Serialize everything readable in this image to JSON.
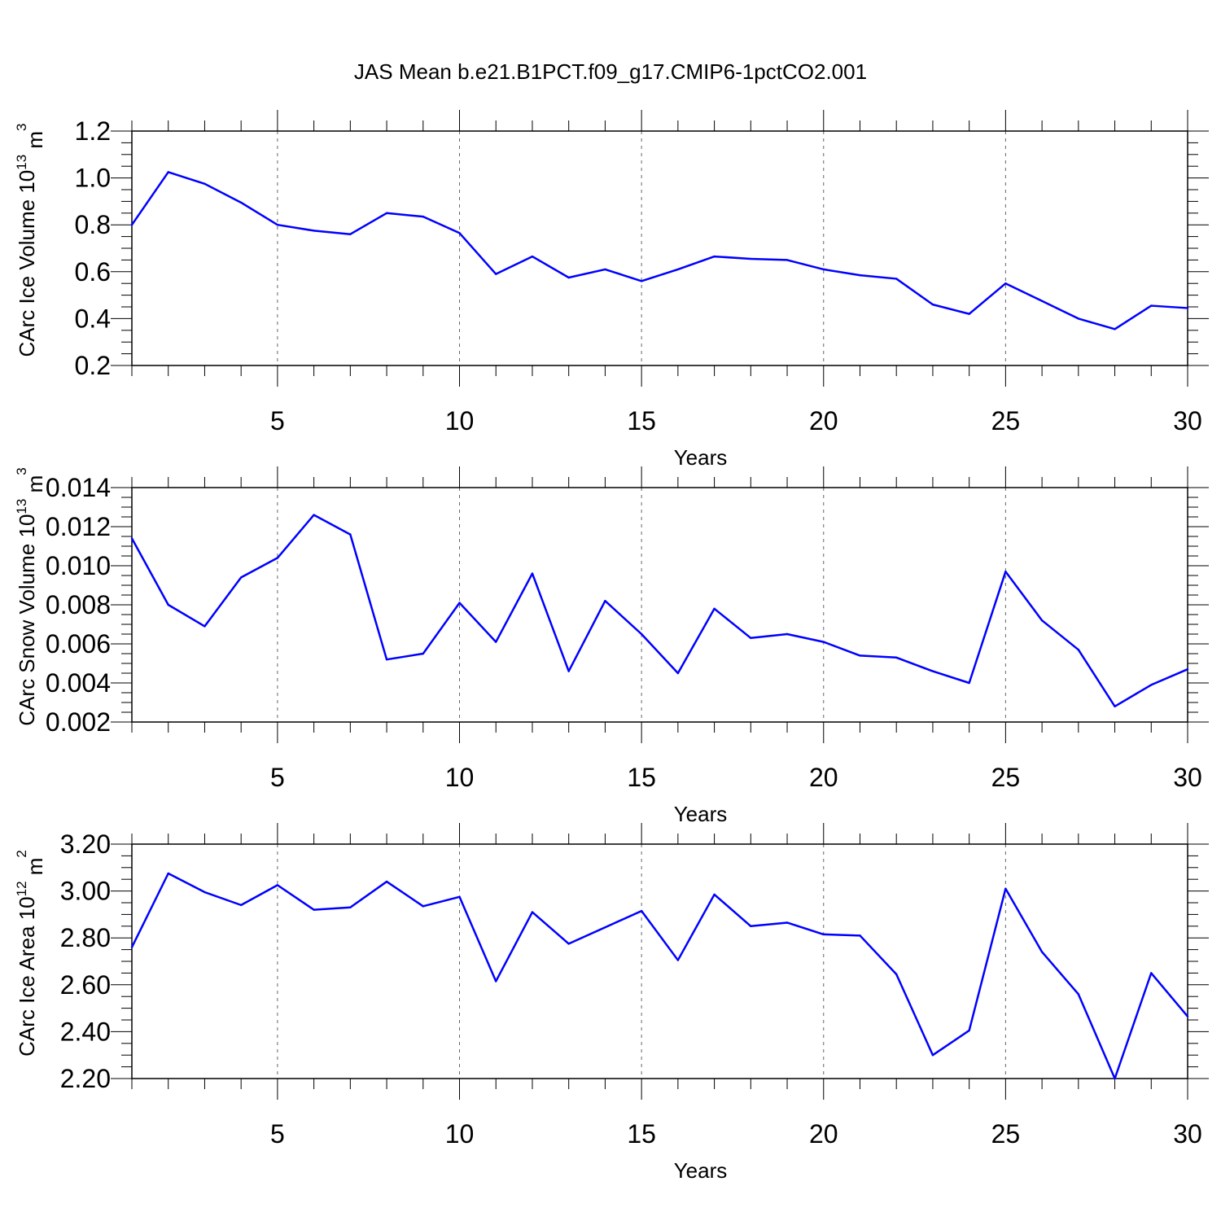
{
  "title": "JAS Mean b.e21.B1PCT.f09_g17.CMIP6-1pctCO2.001",
  "colors": {
    "line": "#0000ff",
    "axis": "#000000",
    "grid": "#666666"
  },
  "chart_data": [
    {
      "type": "line",
      "title": "JAS Mean b.e21.B1PCT.f09_g17.CMIP6-1pctCO2.001",
      "xlabel": "Years",
      "ylabel": {
        "base": "CArc Ice Volume 10",
        "exp1": "13",
        "mid": " m",
        "exp2": "3"
      },
      "xlim": [
        1,
        30
      ],
      "ylim": [
        0.2,
        1.2
      ],
      "x_ticks": [
        5,
        10,
        15,
        20,
        25,
        30
      ],
      "x_tick_labels": [
        "5",
        "10",
        "15",
        "20",
        "25",
        "30"
      ],
      "y_ticks": [
        0.2,
        0.4,
        0.6,
        0.8,
        1.0,
        1.2
      ],
      "y_tick_labels": [
        "0.2",
        "0.4",
        "0.6",
        "0.8",
        "1.0",
        "1.2"
      ],
      "y_minor_step": 0.05,
      "grid": "x-major-dashed",
      "series": [
        {
          "name": "CArc Ice Volume",
          "x": [
            1,
            2,
            3,
            4,
            5,
            6,
            7,
            8,
            9,
            10,
            11,
            12,
            13,
            14,
            15,
            16,
            17,
            18,
            19,
            20,
            21,
            22,
            23,
            24,
            25,
            26,
            27,
            28,
            29,
            30
          ],
          "values": [
            0.8,
            1.025,
            0.975,
            0.895,
            0.8,
            0.775,
            0.76,
            0.85,
            0.835,
            0.765,
            0.59,
            0.665,
            0.575,
            0.61,
            0.56,
            0.61,
            0.665,
            0.655,
            0.65,
            0.61,
            0.585,
            0.57,
            0.46,
            0.42,
            0.55,
            0.475,
            0.4,
            0.355,
            0.455,
            0.445
          ]
        }
      ]
    },
    {
      "type": "line",
      "xlabel": "Years",
      "ylabel": {
        "base": "CArc Snow Volume 10",
        "exp1": "13",
        "mid": " m",
        "exp2": "3"
      },
      "xlim": [
        1,
        30
      ],
      "ylim": [
        0.002,
        0.014
      ],
      "x_ticks": [
        5,
        10,
        15,
        20,
        25,
        30
      ],
      "x_tick_labels": [
        "5",
        "10",
        "15",
        "20",
        "25",
        "30"
      ],
      "y_ticks": [
        0.002,
        0.004,
        0.006,
        0.008,
        0.01,
        0.012,
        0.014
      ],
      "y_tick_labels": [
        "0.002",
        "0.004",
        "0.006",
        "0.008",
        "0.010",
        "0.012",
        "0.014"
      ],
      "y_minor_step": 0.0005,
      "grid": "x-major-dashed",
      "series": [
        {
          "name": "CArc Snow Volume",
          "x": [
            1,
            2,
            3,
            4,
            5,
            6,
            7,
            8,
            9,
            10,
            11,
            12,
            13,
            14,
            15,
            16,
            17,
            18,
            19,
            20,
            21,
            22,
            23,
            24,
            25,
            26,
            27,
            28,
            29,
            30
          ],
          "values": [
            0.0114,
            0.008,
            0.0069,
            0.0094,
            0.0104,
            0.0126,
            0.0116,
            0.0052,
            0.0055,
            0.0081,
            0.0061,
            0.0096,
            0.0046,
            0.0082,
            0.0065,
            0.0045,
            0.0078,
            0.0063,
            0.0065,
            0.0061,
            0.0054,
            0.0053,
            0.0046,
            0.004,
            0.0097,
            0.0072,
            0.0057,
            0.0028,
            0.0039,
            0.0047
          ]
        }
      ]
    },
    {
      "type": "line",
      "xlabel": "Years",
      "ylabel": {
        "base": "CArc Ice Area 10",
        "exp1": "12",
        "mid": " m",
        "exp2": "2"
      },
      "xlim": [
        1,
        30
      ],
      "ylim": [
        2.2,
        3.2
      ],
      "x_ticks": [
        5,
        10,
        15,
        20,
        25,
        30
      ],
      "x_tick_labels": [
        "5",
        "10",
        "15",
        "20",
        "25",
        "30"
      ],
      "y_ticks": [
        2.2,
        2.4,
        2.6,
        2.8,
        3.0,
        3.2
      ],
      "y_tick_labels": [
        "2.20",
        "2.40",
        "2.60",
        "2.80",
        "3.00",
        "3.20"
      ],
      "y_minor_step": 0.05,
      "grid": "x-major-dashed",
      "series": [
        {
          "name": "CArc Ice Area",
          "x": [
            1,
            2,
            3,
            4,
            5,
            6,
            7,
            8,
            9,
            10,
            11,
            12,
            13,
            14,
            15,
            16,
            17,
            18,
            19,
            20,
            21,
            22,
            23,
            24,
            25,
            26,
            27,
            28,
            29,
            30
          ],
          "values": [
            2.76,
            3.075,
            2.995,
            2.94,
            3.025,
            2.92,
            2.93,
            3.04,
            2.935,
            2.975,
            2.615,
            2.91,
            2.775,
            2.845,
            2.915,
            2.705,
            2.985,
            2.85,
            2.865,
            2.815,
            2.81,
            2.645,
            2.3,
            2.405,
            3.01,
            2.74,
            2.56,
            2.2,
            2.65,
            2.465
          ]
        }
      ]
    }
  ]
}
